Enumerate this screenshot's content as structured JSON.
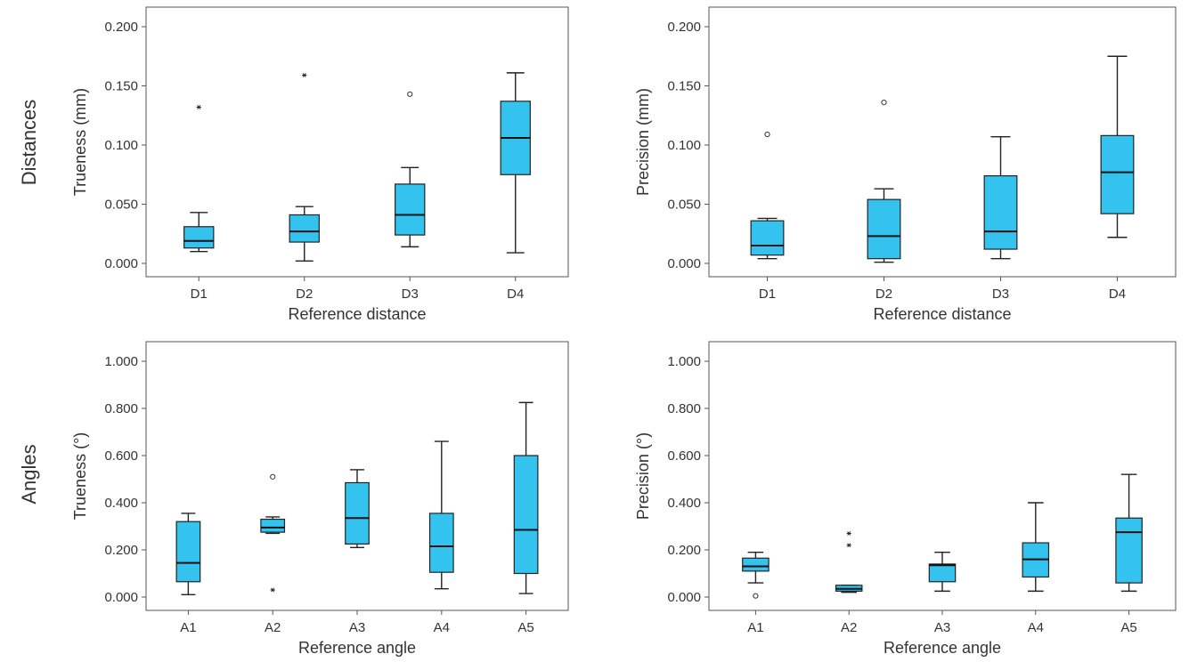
{
  "row_labels": [
    "Distances",
    "Angles"
  ],
  "chart_data": [
    {
      "type": "box",
      "xlabel": "Reference distance",
      "ylabel": "Trueness (mm)",
      "ylim": [
        0,
        0.2
      ],
      "yticks": [
        "0.000",
        "0.050",
        "0.100",
        "0.150",
        "0.200"
      ],
      "box_color": "#33c3ee",
      "categories": [
        "D1",
        "D2",
        "D3",
        "D4"
      ],
      "boxes": [
        {
          "min": 0.01,
          "q1": 0.013,
          "median": 0.019,
          "q3": 0.031,
          "max": 0.043,
          "outliers": [],
          "extremes": [
            0.132
          ]
        },
        {
          "min": 0.002,
          "q1": 0.018,
          "median": 0.027,
          "q3": 0.041,
          "max": 0.048,
          "outliers": [],
          "extremes": [
            0.159
          ]
        },
        {
          "min": 0.014,
          "q1": 0.024,
          "median": 0.041,
          "q3": 0.067,
          "max": 0.081,
          "outliers": [
            0.143
          ],
          "extremes": []
        },
        {
          "min": 0.009,
          "q1": 0.075,
          "median": 0.106,
          "q3": 0.137,
          "max": 0.161,
          "outliers": [],
          "extremes": []
        }
      ]
    },
    {
      "type": "box",
      "xlabel": "Reference distance",
      "ylabel": "Precision (mm)",
      "ylim": [
        0,
        0.2
      ],
      "yticks": [
        "0.000",
        "0.050",
        "0.100",
        "0.150",
        "0.200"
      ],
      "box_color": "#33c3ee",
      "categories": [
        "D1",
        "D2",
        "D3",
        "D4"
      ],
      "boxes": [
        {
          "min": 0.004,
          "q1": 0.007,
          "median": 0.015,
          "q3": 0.036,
          "max": 0.038,
          "outliers": [
            0.109
          ],
          "extremes": []
        },
        {
          "min": 0.001,
          "q1": 0.004,
          "median": 0.023,
          "q3": 0.054,
          "max": 0.063,
          "outliers": [
            0.136
          ],
          "extremes": []
        },
        {
          "min": 0.004,
          "q1": 0.012,
          "median": 0.027,
          "q3": 0.074,
          "max": 0.107,
          "outliers": [],
          "extremes": []
        },
        {
          "min": 0.022,
          "q1": 0.042,
          "median": 0.077,
          "q3": 0.108,
          "max": 0.175,
          "outliers": [],
          "extremes": []
        }
      ]
    },
    {
      "type": "box",
      "xlabel": "Reference angle",
      "ylabel": "Trueness (°)",
      "ylim": [
        0,
        1.0
      ],
      "yticks": [
        "0.000",
        "0.200",
        "0.400",
        "0.600",
        "0.800",
        "1.000"
      ],
      "box_color": "#33c3ee",
      "categories": [
        "A1",
        "A2",
        "A3",
        "A4",
        "A5"
      ],
      "boxes": [
        {
          "min": 0.01,
          "q1": 0.065,
          "median": 0.145,
          "q3": 0.32,
          "max": 0.355,
          "outliers": [],
          "extremes": []
        },
        {
          "min": 0.27,
          "q1": 0.275,
          "median": 0.295,
          "q3": 0.33,
          "max": 0.34,
          "outliers": [
            0.51
          ],
          "extremes": [
            0.03
          ]
        },
        {
          "min": 0.21,
          "q1": 0.225,
          "median": 0.335,
          "q3": 0.485,
          "max": 0.54,
          "outliers": [],
          "extremes": []
        },
        {
          "min": 0.035,
          "q1": 0.105,
          "median": 0.215,
          "q3": 0.355,
          "max": 0.66,
          "outliers": [],
          "extremes": []
        },
        {
          "min": 0.015,
          "q1": 0.1,
          "median": 0.285,
          "q3": 0.6,
          "max": 0.825,
          "outliers": [],
          "extremes": []
        }
      ]
    },
    {
      "type": "box",
      "xlabel": "Reference angle",
      "ylabel": "Precision (°)",
      "ylim": [
        0,
        1.0
      ],
      "yticks": [
        "0.000",
        "0.200",
        "0.400",
        "0.600",
        "0.800",
        "1.000"
      ],
      "box_color": "#33c3ee",
      "categories": [
        "A1",
        "A2",
        "A3",
        "A4",
        "A5"
      ],
      "boxes": [
        {
          "min": 0.06,
          "q1": 0.11,
          "median": 0.13,
          "q3": 0.165,
          "max": 0.19,
          "outliers": [
            0.005
          ],
          "extremes": []
        },
        {
          "min": 0.02,
          "q1": 0.025,
          "median": 0.035,
          "q3": 0.05,
          "max": 0.05,
          "outliers": [],
          "extremes": [
            0.22,
            0.27
          ]
        },
        {
          "min": 0.025,
          "q1": 0.065,
          "median": 0.135,
          "q3": 0.14,
          "max": 0.19,
          "outliers": [],
          "extremes": []
        },
        {
          "min": 0.025,
          "q1": 0.085,
          "median": 0.16,
          "q3": 0.23,
          "max": 0.4,
          "outliers": [],
          "extremes": []
        },
        {
          "min": 0.025,
          "q1": 0.06,
          "median": 0.275,
          "q3": 0.335,
          "max": 0.52,
          "outliers": [],
          "extremes": []
        }
      ]
    }
  ]
}
